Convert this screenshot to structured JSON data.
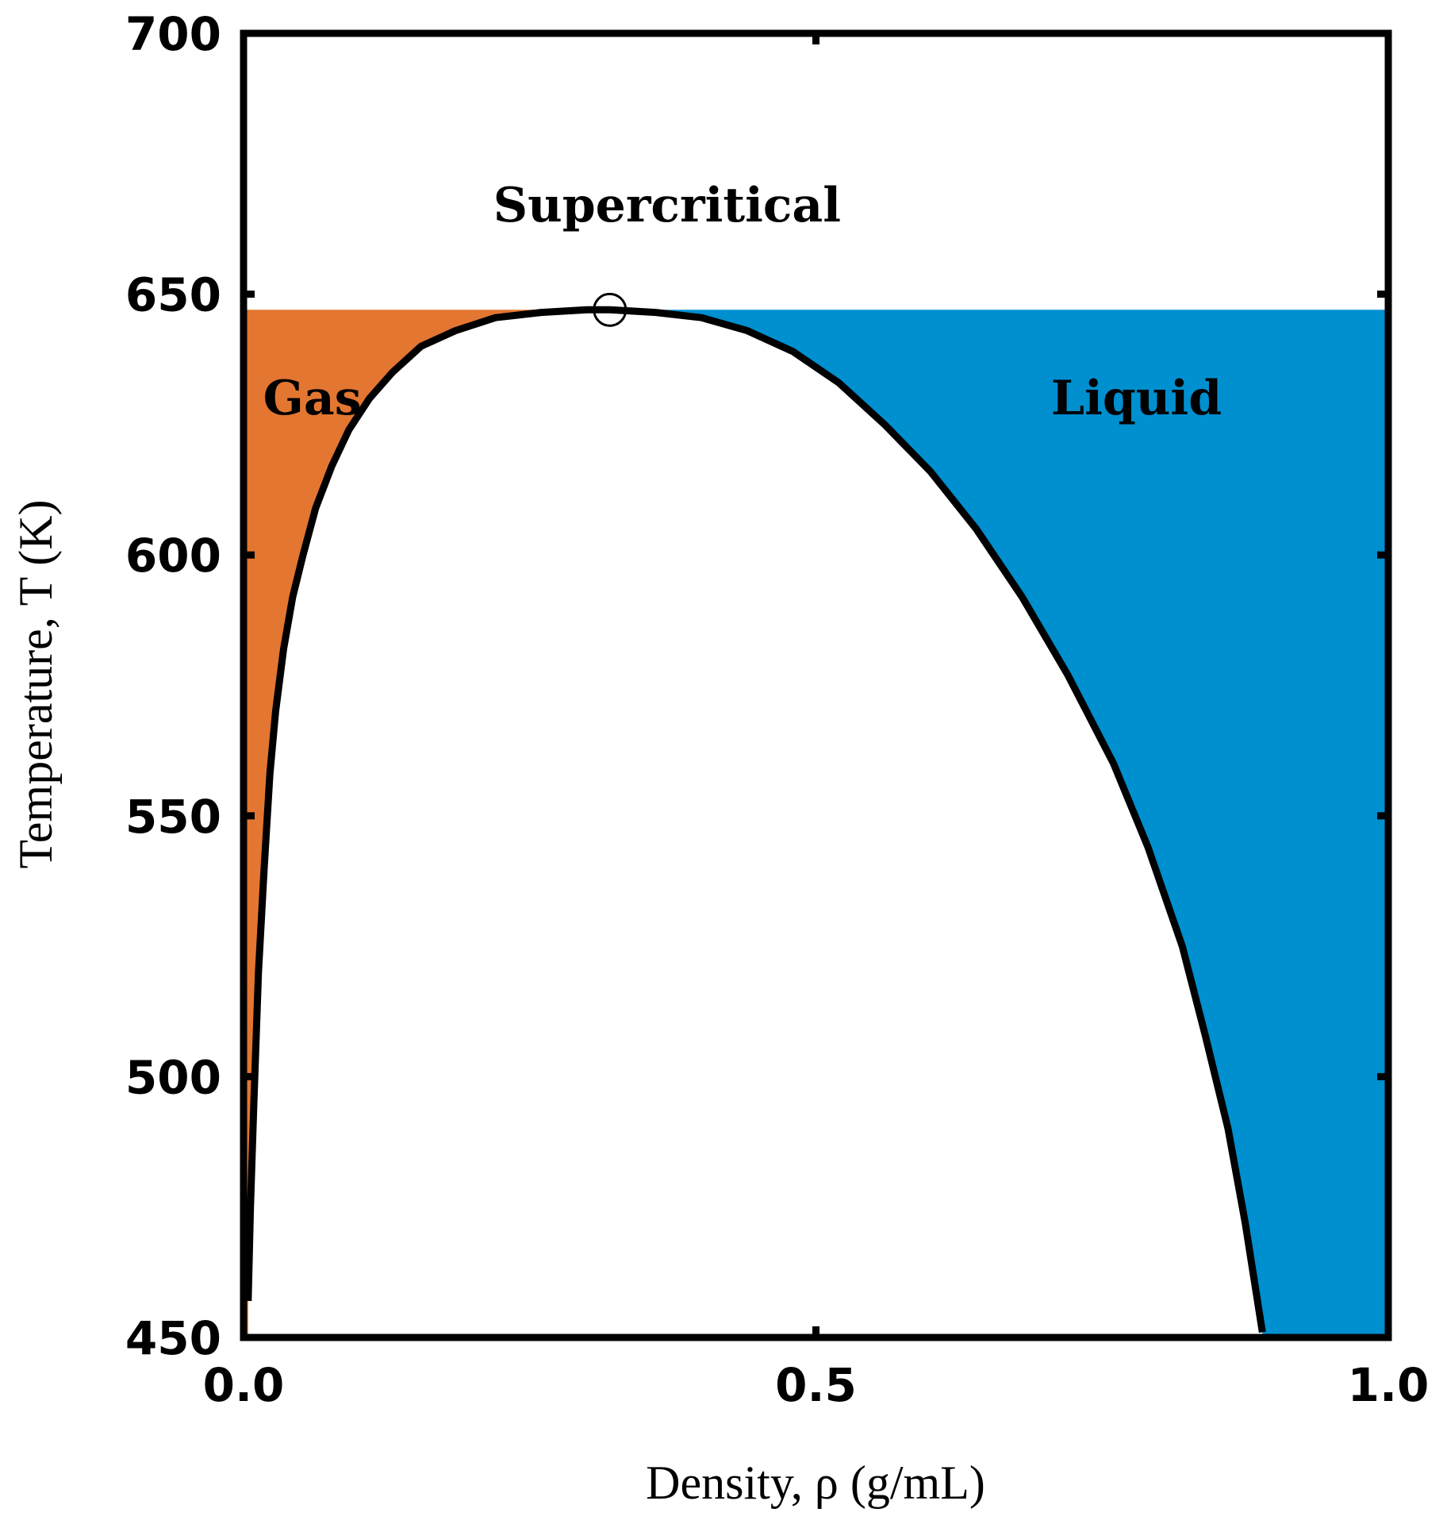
{
  "chart_data": {
    "type": "area",
    "title": "",
    "xlabel": "Density, ρ (g/mL)",
    "ylabel": "Temperature, T (K)",
    "xlim": [
      0.0,
      1.0
    ],
    "ylim": [
      450,
      700
    ],
    "xticks": [
      "0.0",
      "0.5",
      "1.0"
    ],
    "xtick_values": [
      0.0,
      0.5,
      1.0
    ],
    "yticks": [
      "450",
      "500",
      "550",
      "600",
      "650",
      "700"
    ],
    "ytick_values": [
      450,
      500,
      550,
      600,
      650,
      700
    ],
    "grid": false,
    "critical_point": {
      "x": 0.32,
      "y": 647
    },
    "regions": [
      {
        "label": "Supercritical",
        "color": "#ffffff",
        "label_at": {
          "x": 0.37,
          "y": 667
        }
      },
      {
        "label": "Gas",
        "color": "#e37631",
        "label_at": {
          "x": 0.06,
          "y": 630
        }
      },
      {
        "label": "Liquid",
        "color": "#008fcf",
        "label_at": {
          "x": 0.78,
          "y": 630
        }
      }
    ],
    "coexistence_curve": {
      "x": [
        0.004,
        0.006,
        0.009,
        0.013,
        0.018,
        0.023,
        0.028,
        0.035,
        0.043,
        0.052,
        0.063,
        0.077,
        0.092,
        0.11,
        0.13,
        0.155,
        0.185,
        0.22,
        0.26,
        0.3,
        0.32,
        0.36,
        0.4,
        0.44,
        0.48,
        0.52,
        0.56,
        0.6,
        0.64,
        0.68,
        0.72,
        0.76,
        0.79,
        0.82,
        0.84,
        0.86,
        0.875,
        0.89
      ],
      "y": [
        457,
        475,
        495,
        520,
        540,
        558,
        570,
        582,
        592,
        600,
        609,
        617,
        624,
        630,
        635,
        640,
        643,
        645.5,
        646.5,
        647,
        647,
        646.5,
        645.5,
        643,
        639,
        633,
        625,
        616,
        605,
        592,
        577,
        560,
        544,
        525,
        508,
        490,
        472,
        451
      ]
    }
  }
}
